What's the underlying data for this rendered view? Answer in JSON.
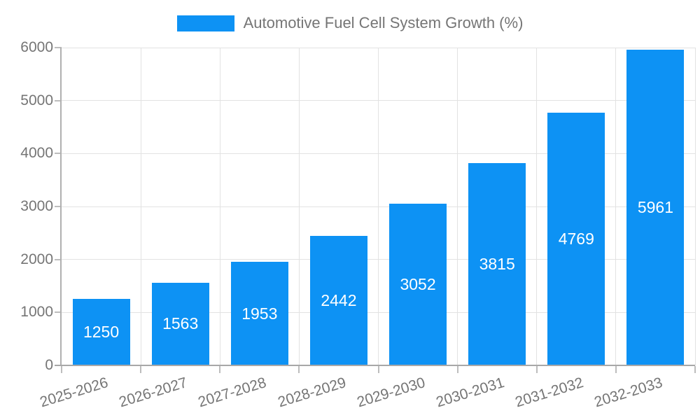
{
  "chart_data": {
    "type": "bar",
    "title": "Automotive Fuel Cell System Growth (%)",
    "categories": [
      "2025-2026",
      "2026-2027",
      "2027-2028",
      "2028-2029",
      "2029-2030",
      "2030-2031",
      "2031-2032",
      "2032-2033"
    ],
    "values": [
      1250,
      1563,
      1953,
      2442,
      3052,
      3815,
      4769,
      5961
    ],
    "xlabel": "",
    "ylabel": "",
    "ylim": [
      0,
      6000
    ],
    "yticks": [
      0,
      1000,
      2000,
      3000,
      4000,
      5000,
      6000
    ],
    "grid": true,
    "legend_position": "top",
    "bar_color": "#0D92F4",
    "value_label_color": "#FFFFFF",
    "axis_text_color": "#757575"
  }
}
